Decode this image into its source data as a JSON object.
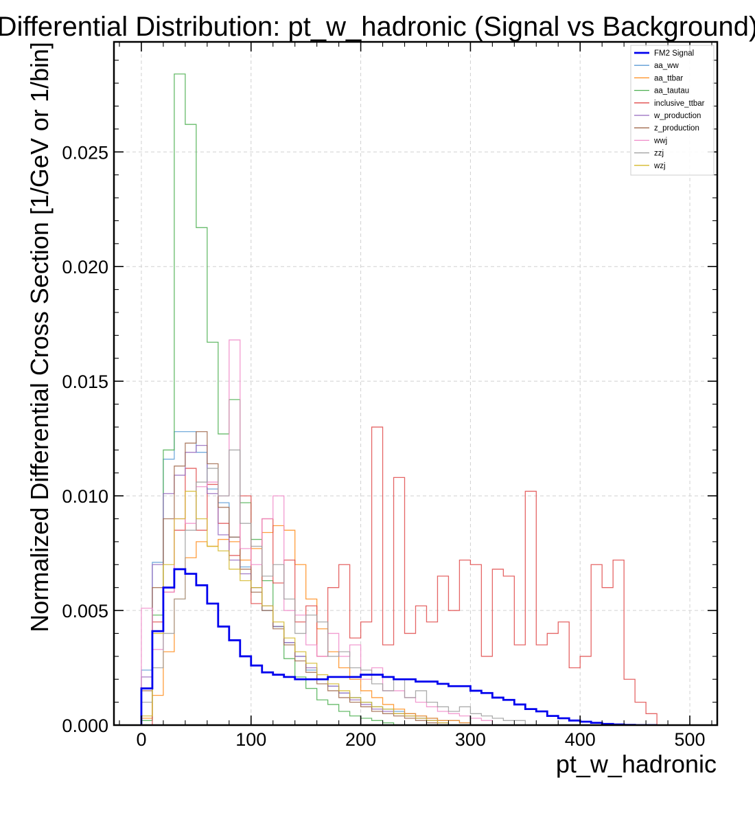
{
  "chart_data": {
    "type": "line",
    "title": "Differential Distribution: pt_w_hadronic (Signal vs Background)",
    "xlabel": "pt_w_hadronic",
    "ylabel": "Normalized Differential Cross Section [1/GeV or 1/bin]",
    "xlim": [
      -25,
      525
    ],
    "ylim": [
      0,
      0.0298
    ],
    "xticks": [
      0,
      100,
      200,
      300,
      400,
      500
    ],
    "yticks": [
      0.0,
      0.005,
      0.01,
      0.015,
      0.02,
      0.025
    ],
    "ytick_labels": [
      "0.000",
      "0.005",
      "0.010",
      "0.015",
      "0.020",
      "0.025"
    ],
    "grid": true,
    "legend_position": "top-right",
    "bin_width": 10,
    "x_start": 0,
    "series": [
      {
        "name": "FM2 Signal",
        "color": "#0000ee",
        "signal": true,
        "values": [
          0.0016,
          0.0041,
          0.006,
          0.0068,
          0.0066,
          0.0061,
          0.0053,
          0.0043,
          0.0037,
          0.003,
          0.0026,
          0.0023,
          0.0022,
          0.0021,
          0.002,
          0.002,
          0.002,
          0.0021,
          0.0021,
          0.0021,
          0.0022,
          0.0022,
          0.0021,
          0.002,
          0.002,
          0.0019,
          0.0019,
          0.0018,
          0.0017,
          0.0017,
          0.0015,
          0.0014,
          0.0012,
          0.0011,
          0.0009,
          0.0007,
          0.0006,
          0.0004,
          0.0003,
          0.0002,
          0.00015,
          0.0001,
          5e-05,
          3e-05,
          1e-05,
          0.0,
          0.0
        ]
      },
      {
        "name": "aa_ww",
        "color": "#5b9bd5",
        "values": [
          0.0024,
          0.0071,
          0.0116,
          0.0128,
          0.0128,
          0.0119,
          0.0103,
          0.0097,
          0.0082,
          0.0069,
          0.006,
          0.005,
          0.0043,
          0.0036,
          0.003,
          0.0024,
          0.002,
          0.0017,
          0.0014,
          0.0012,
          0.001,
          0.0008,
          0.0007,
          0.0006,
          0.0005,
          0.0004,
          0.0003,
          0.0002,
          0.0002,
          0.0001
        ]
      },
      {
        "name": "aa_ttbar",
        "color": "#ff8c1a",
        "values": [
          0.0003,
          0.0013,
          0.0032,
          0.0055,
          0.0073,
          0.008,
          0.0078,
          0.0081,
          0.008,
          0.0072,
          0.0077,
          0.0084,
          0.0087,
          0.0085,
          0.007,
          0.0055,
          0.0042,
          0.0032,
          0.0025,
          0.002,
          0.0015,
          0.0012,
          0.0009,
          0.0007,
          0.0005,
          0.0004,
          0.0003,
          0.0002,
          0.0002,
          0.0001
        ]
      },
      {
        "name": "aa_tautau",
        "color": "#4caf50",
        "values": [
          0.0002,
          0.0048,
          0.012,
          0.0284,
          0.0262,
          0.0217,
          0.0167,
          0.0127,
          0.0142,
          0.0097,
          0.0081,
          0.0063,
          0.0043,
          0.0029,
          0.0021,
          0.0016,
          0.0011,
          0.0009,
          0.0006,
          0.0004,
          0.0003,
          0.0002,
          0.0001
        ]
      },
      {
        "name": "inclusive_ttbar",
        "color": "#e04a4a",
        "values": [
          0.0,
          0.0045,
          0.0058,
          0.0085,
          0.0112,
          0.0085,
          0.0105,
          0.0088,
          0.0074,
          0.01,
          0.0053,
          0.009,
          0.0062,
          0.0072,
          0.0045,
          0.0052,
          0.003,
          0.006,
          0.007,
          0.0038,
          0.0045,
          0.013,
          0.0035,
          0.0108,
          0.004,
          0.0052,
          0.0045,
          0.0065,
          0.005,
          0.0072,
          0.007,
          0.003,
          0.0068,
          0.0065,
          0.0035,
          0.0102,
          0.0035,
          0.004,
          0.0045,
          0.0025,
          0.003,
          0.007,
          0.006,
          0.0072,
          0.002,
          0.001,
          0.0005
        ]
      },
      {
        "name": "w_production",
        "color": "#9467bd",
        "values": [
          0.0021,
          0.007,
          0.0101,
          0.0109,
          0.0119,
          0.0122,
          0.0101,
          0.0083,
          0.0072,
          0.0066,
          0.006,
          0.0052,
          0.0043,
          0.0036,
          0.003,
          0.0025,
          0.002,
          0.0017,
          0.0014,
          0.0011,
          0.0009,
          0.0007,
          0.0006,
          0.0005,
          0.0004,
          0.0003,
          0.0002,
          0.0001
        ]
      },
      {
        "name": "z_production",
        "color": "#a0694b",
        "values": [
          0.0015,
          0.006,
          0.009,
          0.0113,
          0.0123,
          0.0128,
          0.0114,
          0.0095,
          0.0082,
          0.0068,
          0.0058,
          0.005,
          0.0042,
          0.0035,
          0.0028,
          0.0023,
          0.0018,
          0.0015,
          0.0012,
          0.001,
          0.0008,
          0.0006,
          0.0005,
          0.0004,
          0.0003,
          0.0002,
          0.0001
        ]
      },
      {
        "name": "wwj",
        "color": "#f08ac8",
        "values": [
          0.0051,
          0.0033,
          0.0058,
          0.009,
          0.0088,
          0.0104,
          0.0106,
          0.01,
          0.0168,
          0.0077,
          0.007,
          0.009,
          0.01,
          0.005,
          0.0048,
          0.0035,
          0.003,
          0.004,
          0.003,
          0.0035,
          0.002,
          0.0025,
          0.0015,
          0.0015,
          0.0012,
          0.001,
          0.0008,
          0.0006,
          0.0005,
          0.0004,
          0.0003,
          0.0002
        ]
      },
      {
        "name": "zzj",
        "color": "#9e9e9e",
        "values": [
          0.001,
          0.0025,
          0.004,
          0.0055,
          0.0085,
          0.0106,
          0.0112,
          0.01,
          0.012,
          0.0088,
          0.0078,
          0.0065,
          0.007,
          0.0055,
          0.004,
          0.0048,
          0.0045,
          0.003,
          0.0032,
          0.0025,
          0.0024,
          0.0018,
          0.0015,
          0.002,
          0.0012,
          0.0015,
          0.001,
          0.0008,
          0.0006,
          0.0008,
          0.0005,
          0.0004,
          0.0003,
          0.0002,
          0.0002
        ]
      },
      {
        "name": "wzj",
        "color": "#d4b82a",
        "values": [
          0.0004,
          0.004,
          0.007,
          0.009,
          0.0102,
          0.009,
          0.0078,
          0.0076,
          0.0068,
          0.0063,
          0.006,
          0.0052,
          0.0045,
          0.0038,
          0.0032,
          0.0027,
          0.0022,
          0.0018,
          0.0015,
          0.0012,
          0.001,
          0.0008,
          0.0007,
          0.0005,
          0.0004,
          0.0003,
          0.0002,
          0.0001
        ]
      }
    ]
  }
}
